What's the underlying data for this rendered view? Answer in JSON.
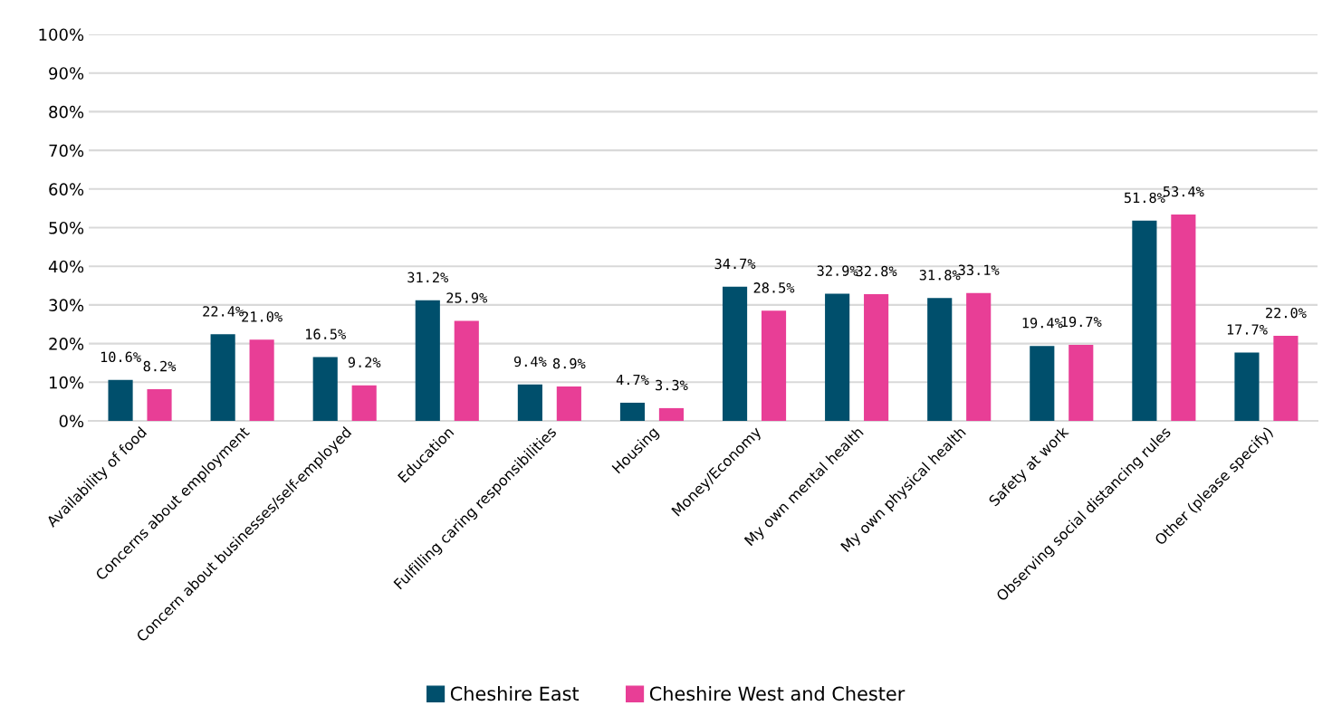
{
  "chart_data": {
    "type": "bar",
    "categories": [
      "Availability of food",
      "Concerns about employment",
      "Concern about businesses/self-employed",
      "Education",
      "Fulfilling caring responsibilities",
      "Housing",
      "Money/Economy",
      "My own mental health",
      "My own physical health",
      "Safety at work",
      "Observing social distancing rules",
      "Other (please specify)"
    ],
    "series": [
      {
        "name": "Cheshire East",
        "color": "#004f6c",
        "values": [
          10.6,
          22.4,
          16.5,
          31.2,
          9.4,
          4.7,
          34.7,
          32.9,
          31.8,
          19.4,
          51.8,
          17.7
        ],
        "value_labels": [
          "10.6%",
          "22.4%",
          "16.5%",
          "31.2%",
          "9.4%",
          "4.7%",
          "34.7%",
          "32.9%",
          "31.8%",
          "19.4%",
          "51.8%",
          "17.7%"
        ]
      },
      {
        "name": "Cheshire West and Chester",
        "color": "#e83e96",
        "values": [
          8.2,
          21.0,
          9.2,
          25.9,
          8.9,
          3.3,
          28.5,
          32.8,
          33.1,
          19.7,
          53.4,
          22.0
        ],
        "value_labels": [
          "8.2%",
          "21.0%",
          "9.2%",
          "25.9%",
          "8.9%",
          "3.3%",
          "28.5%",
          "32.8%",
          "33.1%",
          "19.7%",
          "53.4%",
          "22.0%"
        ]
      }
    ],
    "ylim": [
      0,
      100
    ],
    "yticks": [
      {
        "value": 0,
        "label": "0%"
      },
      {
        "value": 10,
        "label": "10%"
      },
      {
        "value": 20,
        "label": "20%"
      },
      {
        "value": 30,
        "label": "30%"
      },
      {
        "value": 40,
        "label": "40%"
      },
      {
        "value": 50,
        "label": "50%"
      },
      {
        "value": 60,
        "label": "60%"
      },
      {
        "value": 70,
        "label": "70%"
      },
      {
        "value": 80,
        "label": "80%"
      },
      {
        "value": 90,
        "label": "90%"
      },
      {
        "value": 100,
        "label": "100%"
      }
    ],
    "grid": "y",
    "legend": "bottom"
  }
}
